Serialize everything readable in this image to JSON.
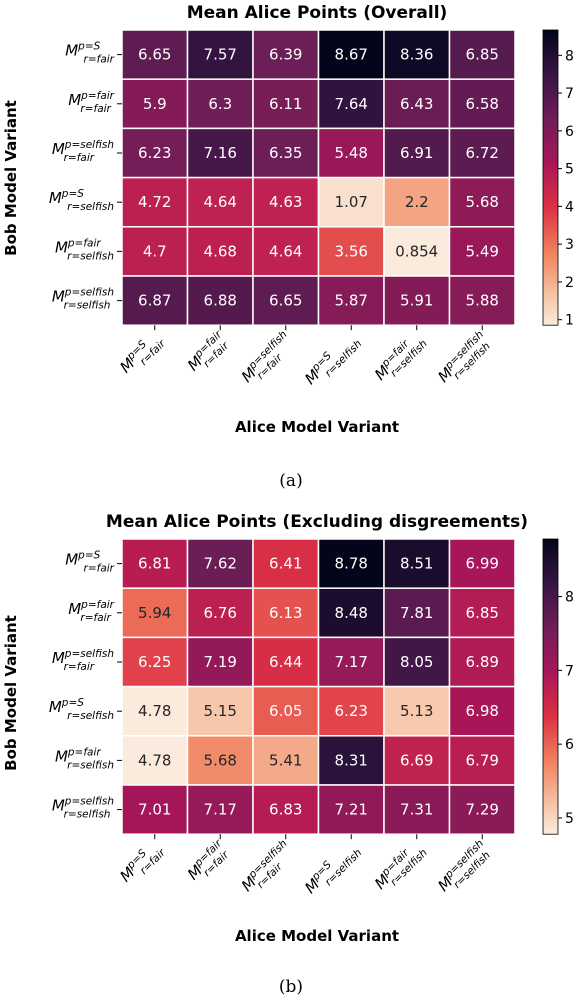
{
  "chart_data": [
    {
      "type": "heatmap",
      "title": "Mean Alice Points (Overall)",
      "xlabel": "Alice Model Variant",
      "ylabel": "Bob Model Variant",
      "caption": "(a)",
      "x_categories": [
        {
          "base": "M",
          "sup": "p=S",
          "sub": "r=fair"
        },
        {
          "base": "M",
          "sup": "p=fair",
          "sub": "r=fair"
        },
        {
          "base": "M",
          "sup": "p=selfish",
          "sub": "r=fair"
        },
        {
          "base": "M",
          "sup": "p=S",
          "sub": "r=selfish"
        },
        {
          "base": "M",
          "sup": "p=fair",
          "sub": "r=selfish"
        },
        {
          "base": "M",
          "sup": "p=selfish",
          "sub": "r=selfish"
        }
      ],
      "y_categories": [
        {
          "base": "M",
          "sup": "p=S",
          "sub": "r=fair"
        },
        {
          "base": "M",
          "sup": "p=fair",
          "sub": "r=fair"
        },
        {
          "base": "M",
          "sup": "p=selfish",
          "sub": "r=fair"
        },
        {
          "base": "M",
          "sup": "p=S",
          "sub": "r=selfish"
        },
        {
          "base": "M",
          "sup": "p=fair",
          "sub": "r=selfish"
        },
        {
          "base": "M",
          "sup": "p=selfish",
          "sub": "r=selfish"
        }
      ],
      "values": [
        [
          6.65,
          7.57,
          6.39,
          8.67,
          8.36,
          6.85
        ],
        [
          5.9,
          6.3,
          6.11,
          7.64,
          6.43,
          6.58
        ],
        [
          6.23,
          7.16,
          6.35,
          5.48,
          6.91,
          6.72
        ],
        [
          4.72,
          4.64,
          4.63,
          1.07,
          2.2,
          5.68
        ],
        [
          4.7,
          4.68,
          4.64,
          3.56,
          0.854,
          5.49
        ],
        [
          6.87,
          6.88,
          6.65,
          5.87,
          5.91,
          5.88
        ]
      ],
      "value_labels": [
        [
          "6.65",
          "7.57",
          "6.39",
          "8.67",
          "8.36",
          "6.85"
        ],
        [
          "5.9",
          "6.3",
          "6.11",
          "7.64",
          "6.43",
          "6.58"
        ],
        [
          "6.23",
          "7.16",
          "6.35",
          "5.48",
          "6.91",
          "6.72"
        ],
        [
          "4.72",
          "4.64",
          "4.63",
          "1.07",
          "2.2",
          "5.68"
        ],
        [
          "4.7",
          "4.68",
          "4.64",
          "3.56",
          "0.854",
          "5.49"
        ],
        [
          "6.87",
          "6.88",
          "6.65",
          "5.87",
          "5.91",
          "5.88"
        ]
      ],
      "colorbar": {
        "vmin": 0.854,
        "vmax": 8.67,
        "ticks": [
          1,
          2,
          3,
          4,
          5,
          6,
          7,
          8
        ],
        "colormap": "rocket_r"
      }
    },
    {
      "type": "heatmap",
      "title": "Mean Alice Points (Excluding disgreements)",
      "xlabel": "Alice Model Variant",
      "ylabel": "Bob Model Variant",
      "caption": "(b)",
      "x_categories": [
        {
          "base": "M",
          "sup": "p=S",
          "sub": "r=fair"
        },
        {
          "base": "M",
          "sup": "p=fair",
          "sub": "r=fair"
        },
        {
          "base": "M",
          "sup": "p=selfish",
          "sub": "r=fair"
        },
        {
          "base": "M",
          "sup": "p=S",
          "sub": "r=selfish"
        },
        {
          "base": "M",
          "sup": "p=fair",
          "sub": "r=selfish"
        },
        {
          "base": "M",
          "sup": "p=selfish",
          "sub": "r=selfish"
        }
      ],
      "y_categories": [
        {
          "base": "M",
          "sup": "p=S",
          "sub": "r=fair"
        },
        {
          "base": "M",
          "sup": "p=fair",
          "sub": "r=fair"
        },
        {
          "base": "M",
          "sup": "p=selfish",
          "sub": "r=fair"
        },
        {
          "base": "M",
          "sup": "p=S",
          "sub": "r=selfish"
        },
        {
          "base": "M",
          "sup": "p=fair",
          "sub": "r=selfish"
        },
        {
          "base": "M",
          "sup": "p=selfish",
          "sub": "r=selfish"
        }
      ],
      "values": [
        [
          6.81,
          7.62,
          6.41,
          8.78,
          8.51,
          6.99
        ],
        [
          5.94,
          6.76,
          6.13,
          8.48,
          7.81,
          6.85
        ],
        [
          6.25,
          7.19,
          6.44,
          7.17,
          8.05,
          6.89
        ],
        [
          4.78,
          5.15,
          6.05,
          6.23,
          5.13,
          6.98
        ],
        [
          4.78,
          5.68,
          5.41,
          8.31,
          6.69,
          6.79
        ],
        [
          7.01,
          7.17,
          6.83,
          7.21,
          7.31,
          7.29
        ]
      ],
      "value_labels": [
        [
          "6.81",
          "7.62",
          "6.41",
          "8.78",
          "8.51",
          "6.99"
        ],
        [
          "5.94",
          "6.76",
          "6.13",
          "8.48",
          "7.81",
          "6.85"
        ],
        [
          "6.25",
          "7.19",
          "6.44",
          "7.17",
          "8.05",
          "6.89"
        ],
        [
          "4.78",
          "5.15",
          "6.05",
          "6.23",
          "5.13",
          "6.98"
        ],
        [
          "4.78",
          "5.68",
          "5.41",
          "8.31",
          "6.69",
          "6.79"
        ],
        [
          "7.01",
          "7.17",
          "6.83",
          "7.21",
          "7.31",
          "7.29"
        ]
      ],
      "colorbar": {
        "vmin": 4.78,
        "vmax": 8.78,
        "ticks": [
          5,
          6,
          7,
          8
        ],
        "colormap": "rocket_r"
      }
    }
  ]
}
